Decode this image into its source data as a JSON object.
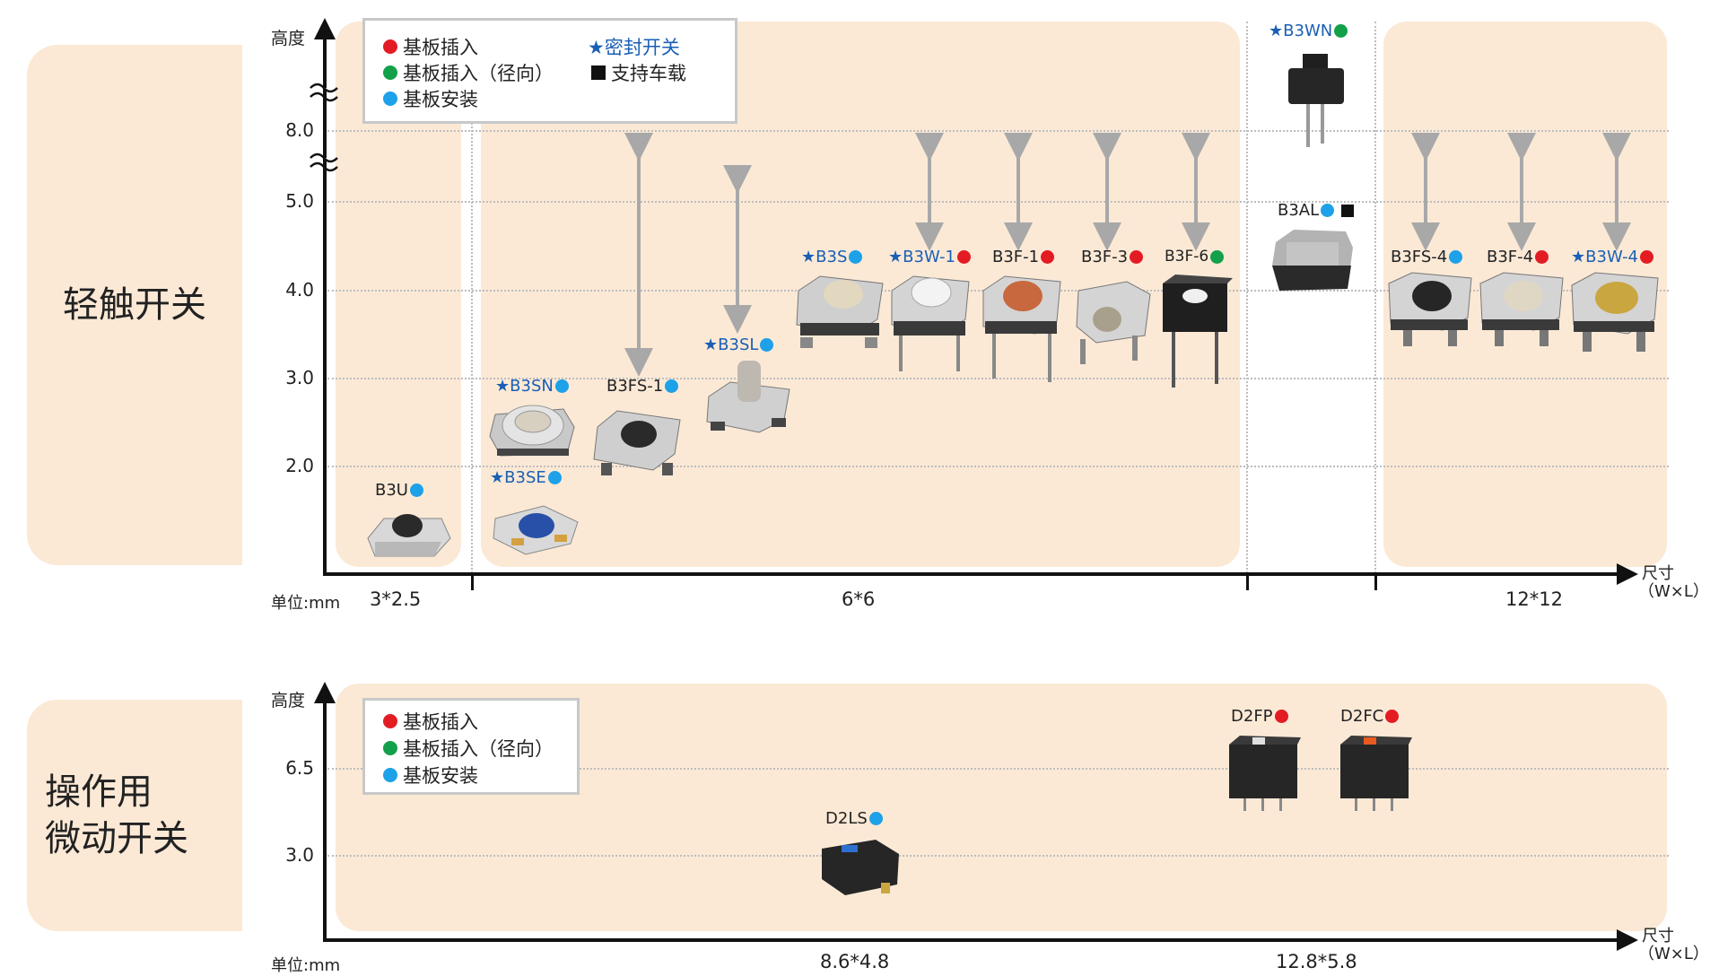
{
  "colors": {
    "red": "#e31c23",
    "green": "#13a04a",
    "blue": "#1da1e8",
    "star_blue": "#1a5fb4",
    "zone": "#fbe9d6",
    "arrow": "#a8a8a8"
  },
  "tactile": {
    "section_label": "轻触开关",
    "y_axis_label": "高度",
    "unit_label": "单位:mm",
    "x_axis_label_line1": "尺寸",
    "x_axis_label_line2": "（W×L）",
    "y_ticks": [
      "8.0",
      "5.0",
      "4.0",
      "3.0",
      "2.0"
    ],
    "x_groups": [
      "3*2.5",
      "6*6",
      "12*12"
    ],
    "legend": {
      "item1": "基板插入",
      "item2": "基板插入（径向）",
      "item3": "基板安装",
      "item4": "★密封开关",
      "item5": "支持车载"
    },
    "products": {
      "b3u": "B3U",
      "b3sn": "★B3SN",
      "b3se": "★B3SE",
      "b3fs1": "B3FS-1",
      "b3sl": "★B3SL",
      "b3s": "★B3S",
      "b3w1": "★B3W-1",
      "b3f1": "B3F-1",
      "b3f3": "B3F-3",
      "b3f6": "B3F-6",
      "b3wn": "★B3WN",
      "b3al": "B3AL",
      "b3fs4": "B3FS-4",
      "b3f4": "B3F-4",
      "b3w4": "★B3W-4"
    }
  },
  "micro": {
    "section_label_line1": "操作用",
    "section_label_line2": "微动开关",
    "y_axis_label": "高度",
    "unit_label": "单位:mm",
    "x_axis_label_line1": "尺寸",
    "x_axis_label_line2": "（W×L）",
    "y_ticks": [
      "6.5",
      "3.0"
    ],
    "x_groups": [
      "8.6*4.8",
      "12.8*5.8"
    ],
    "legend": {
      "item1": "基板插入",
      "item2": "基板插入（径向）",
      "item3": "基板安装"
    },
    "products": {
      "d2ls": "D2LS",
      "d2fp": "D2FP",
      "d2fc": "D2FC"
    }
  }
}
